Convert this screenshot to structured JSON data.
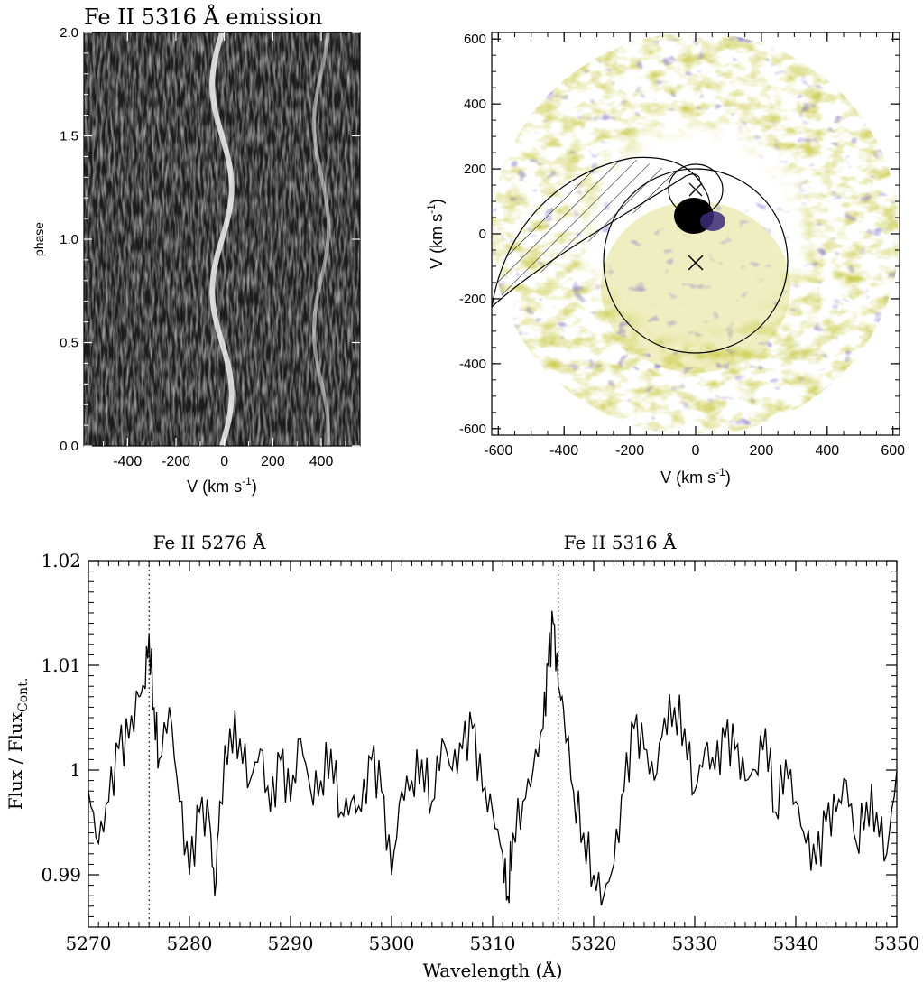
{
  "trailed_spectrum": {
    "title": "Fe II 5316 Å emission",
    "xlabel": "V (km s",
    "xlabel_sup": "-1",
    "xlabel_close": ")",
    "ylabel": "phase",
    "x_ticks": [
      "-400",
      "-200",
      "0",
      "200",
      "400"
    ],
    "y_ticks": [
      "0.0",
      "0.5",
      "1.0",
      "1.5",
      "2.0"
    ]
  },
  "tomogram": {
    "xlabel": "V (km s",
    "xlabel_sup": "-1",
    "xlabel_close": ")",
    "ylabel": "V (km s",
    "ylabel_sup": "-1",
    "ylabel_close": ")",
    "x_ticks": [
      "-600",
      "-400",
      "-200",
      "0",
      "200",
      "400",
      "600"
    ],
    "y_ticks": [
      "-600",
      "-400",
      "-200",
      "0",
      "200",
      "400",
      "600"
    ],
    "colors": {
      "low": "#ffffff",
      "mid": "#c9c93a",
      "high": "#3a2b7a",
      "peak": "#000000"
    }
  },
  "spectrum": {
    "xlabel": "Wavelength (Å)",
    "ylabel": "Flux / Flux",
    "ylabel_sub": "Cont.",
    "line_labels": [
      "Fe II 5276 Å",
      "Fe II 5316 Å"
    ],
    "x_ticks": [
      "5270",
      "5280",
      "5290",
      "5300",
      "5310",
      "5320",
      "5330",
      "5340",
      "5350"
    ],
    "y_ticks": [
      "0.99",
      "1",
      "1.01",
      "1.02"
    ]
  },
  "chart_data": [
    {
      "type": "heatmap",
      "title": "Fe II 5316 Å emission",
      "xlabel": "V (km s-1)",
      "ylabel": "phase",
      "xlim": [
        -580,
        560
      ],
      "ylim": [
        0.0,
        2.0
      ],
      "features": [
        {
          "name": "main emission S-wave",
          "v_mean": -10,
          "amplitude": 40
        },
        {
          "name": "secondary streak",
          "v_mean": 400,
          "amplitude": 30
        }
      ]
    },
    {
      "type": "heatmap",
      "xlabel": "V (km s-1)",
      "ylabel": "V (km s-1)",
      "xlim": [
        -620,
        620
      ],
      "ylim": [
        -620,
        620
      ],
      "peak_emission_v": [
        5,
        50
      ],
      "markers": [
        [
          0,
          -95
        ],
        [
          0,
          130
        ]
      ],
      "circles": [
        {
          "center": [
            0,
            -95
          ],
          "radius": 285
        }
      ],
      "grid": false
    },
    {
      "type": "line",
      "xlabel": "Wavelength (Å)",
      "ylabel": "Flux / Flux Cont.",
      "xlim": [
        5270,
        5350
      ],
      "ylim": [
        0.985,
        1.02
      ],
      "reference_lines": [
        5276,
        5316.5
      ],
      "x": [
        5270.0,
        5271.0,
        5272.0,
        5273.0,
        5274.0,
        5275.0,
        5275.5,
        5276.0,
        5276.5,
        5277.0,
        5278.0,
        5279.0,
        5280.0,
        5281.0,
        5282.0,
        5282.5,
        5283.0,
        5284.0,
        5285.0,
        5286.0,
        5287.0,
        5288.0,
        5289.0,
        5290.0,
        5291.0,
        5292.0,
        5293.0,
        5294.0,
        5295.0,
        5296.0,
        5297.0,
        5298.0,
        5299.0,
        5300.0,
        5301.0,
        5302.0,
        5303.0,
        5304.0,
        5305.0,
        5306.0,
        5307.0,
        5308.0,
        5309.0,
        5310.0,
        5311.0,
        5311.5,
        5312.0,
        5313.0,
        5314.0,
        5315.0,
        5315.5,
        5316.0,
        5316.5,
        5317.0,
        5318.0,
        5319.0,
        5320.0,
        5321.0,
        5322.0,
        5323.0,
        5324.0,
        5325.0,
        5326.0,
        5327.0,
        5328.0,
        5329.0,
        5330.0,
        5331.0,
        5332.0,
        5333.0,
        5334.0,
        5335.0,
        5336.0,
        5337.0,
        5338.0,
        5339.0,
        5340.0,
        5341.0,
        5342.0,
        5343.0,
        5344.0,
        5345.0,
        5346.0,
        5347.0,
        5348.0,
        5349.0,
        5350.0
      ],
      "y": [
        0.998,
        0.993,
        0.997,
        1.002,
        1.003,
        1.007,
        1.008,
        1.013,
        1.006,
        1.001,
        1.006,
        0.997,
        0.99,
        0.996,
        0.995,
        0.988,
        0.997,
        1.004,
        1.003,
        0.999,
        1.002,
        0.996,
        1.001,
        0.997,
        1.003,
        0.998,
        0.999,
        1.002,
        0.996,
        0.997,
        0.996,
        1.001,
        0.998,
        0.99,
        0.998,
        0.999,
        1.001,
        0.997,
        1.003,
        1.0,
        1.002,
        1.004,
        0.998,
        0.996,
        0.992,
        0.988,
        0.994,
        0.997,
        1.0,
        1.004,
        1.01,
        1.014,
        1.008,
        1.006,
        0.998,
        0.994,
        0.99,
        0.988,
        0.991,
        0.998,
        1.004,
        1.002,
        0.999,
        1.005,
        1.006,
        1.004,
        0.998,
        1.002,
        1.0,
        1.003,
        1.002,
        0.999,
        1.0,
        1.004,
        0.996,
        1.001,
        0.997,
        0.993,
        0.991,
        0.995,
        0.996,
        0.999,
        0.993,
        0.997,
        0.996,
        0.992,
        1.0
      ]
    }
  ]
}
